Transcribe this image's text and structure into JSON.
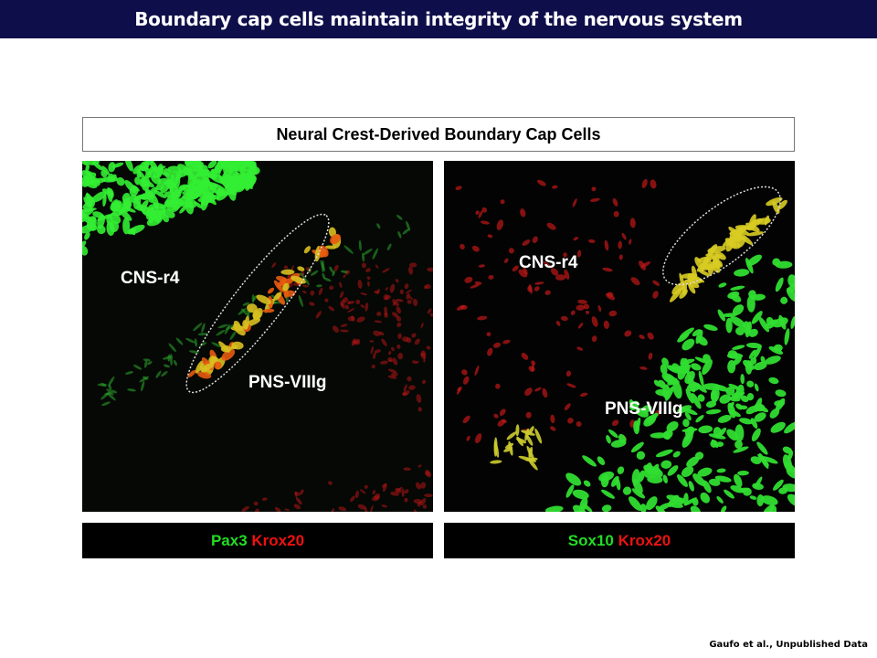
{
  "header": {
    "title": "Boundary cap cells maintain integrity of the nervous system"
  },
  "figure": {
    "title": "Neural Crest-Derived Boundary Cap Cells",
    "panels": [
      {
        "labels": [
          "CNS-r4",
          "PNS-VIIIg"
        ],
        "caption": {
          "green": "Pax3",
          "red": "Krox20"
        }
      },
      {
        "labels": [
          "CNS-r4",
          "PNS-VIIIg"
        ],
        "caption": {
          "green": "Sox10",
          "red": "Krox20"
        }
      }
    ]
  },
  "footer": {
    "citation": "Gaufo et al., Unpublished Data"
  }
}
